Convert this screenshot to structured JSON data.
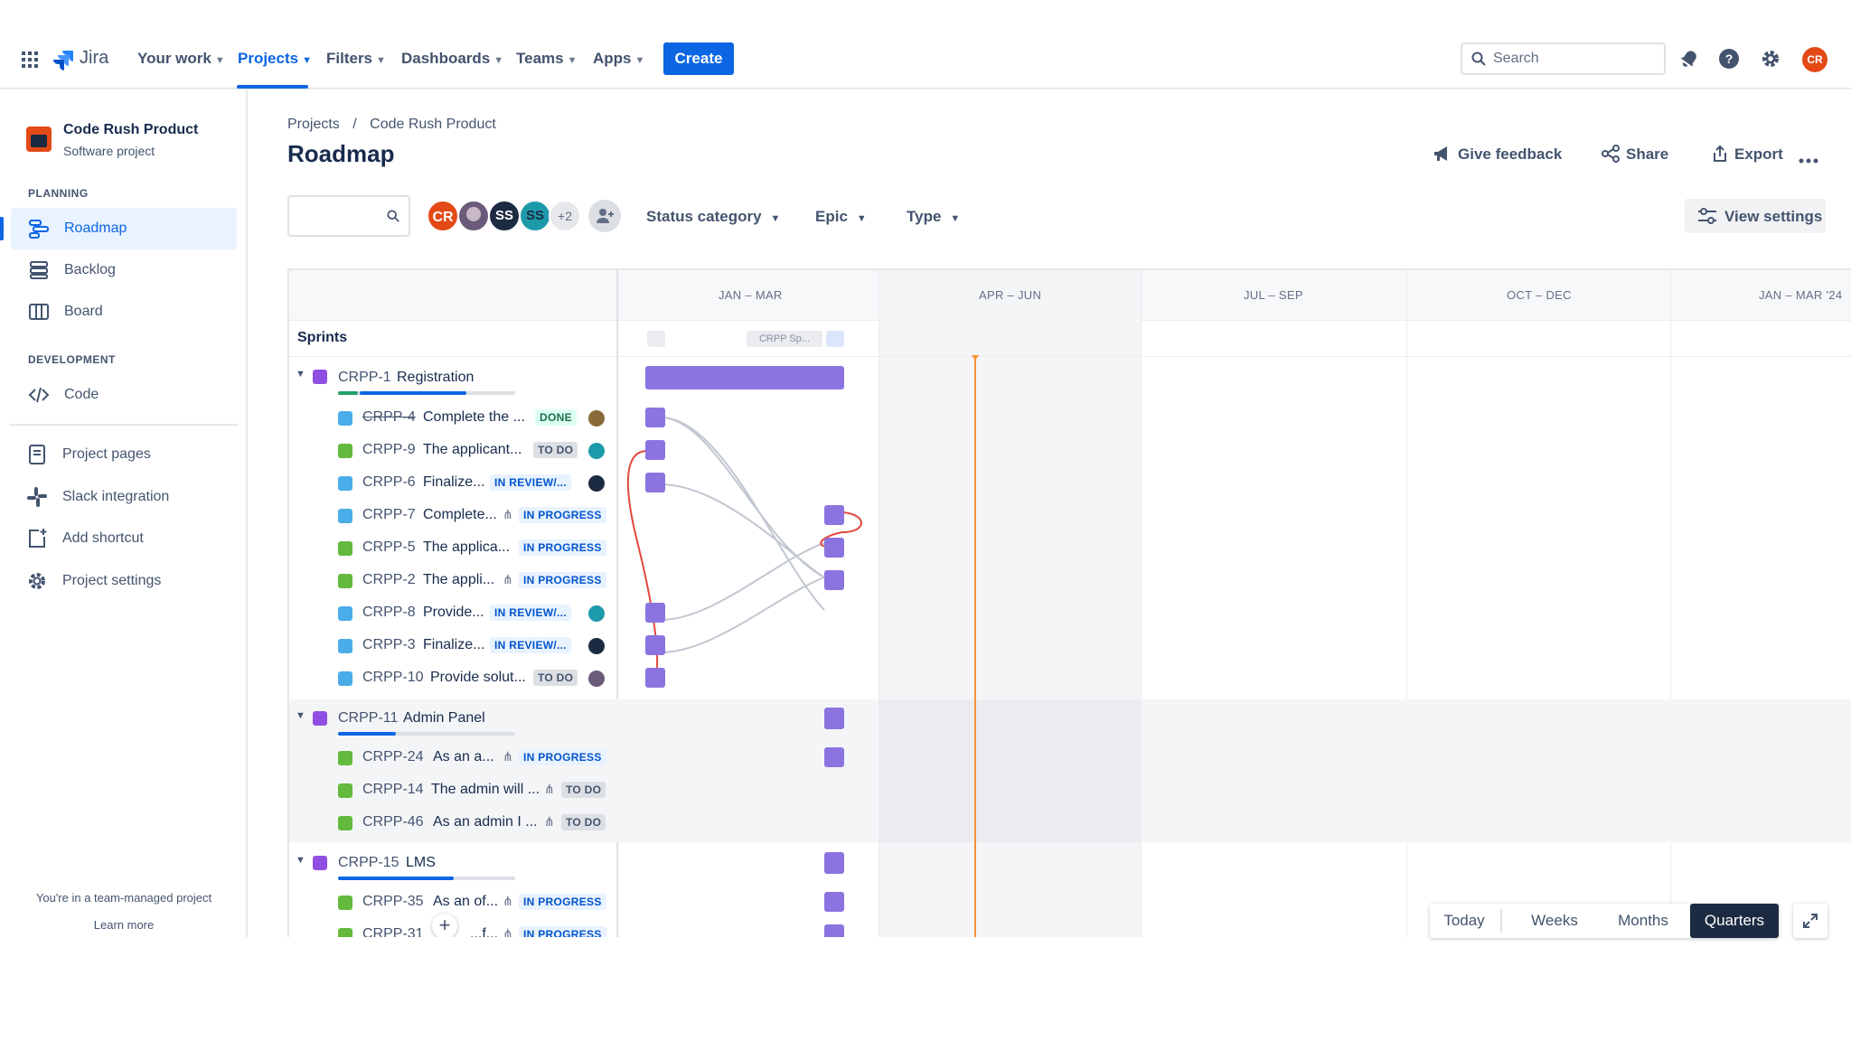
{
  "topnav": {
    "logo": "Jira",
    "items": [
      {
        "label": "Your work"
      },
      {
        "label": "Projects"
      },
      {
        "label": "Filters"
      },
      {
        "label": "Dashboards"
      },
      {
        "label": "Teams"
      },
      {
        "label": "Apps"
      }
    ],
    "active_item": "Projects",
    "create_label": "Create",
    "search_placeholder": "Search",
    "user_initials": "CR",
    "colors": {
      "accent": "#0c66e4",
      "user_avatar": "#e34a16"
    }
  },
  "sidebar": {
    "project_name": "Code Rush Product",
    "project_type": "Software project",
    "planning_header": "PLANNING",
    "planning_items": [
      {
        "label": "Roadmap",
        "icon": "roadmap-icon",
        "active": true
      },
      {
        "label": "Backlog",
        "icon": "backlog-icon"
      },
      {
        "label": "Board",
        "icon": "board-icon"
      }
    ],
    "development_header": "DEVELOPMENT",
    "development_items": [
      {
        "label": "Code",
        "icon": "code-icon"
      }
    ],
    "other_items": [
      {
        "label": "Project pages",
        "icon": "page-icon"
      },
      {
        "label": "Slack integration",
        "icon": "slack-icon"
      },
      {
        "label": "Add shortcut",
        "icon": "add-shortcut-icon"
      },
      {
        "label": "Project settings",
        "icon": "gear-icon"
      }
    ],
    "footer_text": "You're in a team-managed project",
    "footer_link": "Learn more"
  },
  "header": {
    "breadcrumb": [
      "Projects",
      "Code Rush Product"
    ],
    "breadcrumb_sep": "/",
    "title": "Roadmap",
    "actions": {
      "feedback": "Give feedback",
      "share": "Share",
      "export": "Export"
    }
  },
  "filters": {
    "avatars": [
      "CR",
      "",
      "SS",
      "SS"
    ],
    "more_count": "+2",
    "status_category": "Status category",
    "epic": "Epic",
    "type": "Type",
    "view_settings": "View settings"
  },
  "timeline": {
    "quarters": [
      "JAN – MAR",
      "APR – JUN",
      "JUL – SEP",
      "OCT – DEC",
      "JAN – MAR '24"
    ],
    "sprints_label": "Sprints",
    "sprint_chip": "CRPP Sp...",
    "rows": [
      {
        "kind": "epic",
        "key": "CRPP-1",
        "summary": "Registration",
        "progress_done": 0.12,
        "progress_inprog": 0.6
      },
      {
        "kind": "task",
        "key": "CRPP-4",
        "summary": "Complete the ...",
        "status": "DONE",
        "done": true
      },
      {
        "kind": "story",
        "key": "CRPP-9",
        "summary": "The applicant...",
        "status": "TO DO"
      },
      {
        "kind": "task",
        "key": "CRPP-6",
        "summary": "Finalize...",
        "status": "IN REVIEW/..."
      },
      {
        "kind": "task",
        "key": "CRPP-7",
        "summary": "Complete...",
        "status": "IN PROGRESS",
        "child_icon": true
      },
      {
        "kind": "story",
        "key": "CRPP-5",
        "summary": "The applica...",
        "status": "IN PROGRESS"
      },
      {
        "kind": "story",
        "key": "CRPP-2",
        "summary": "The appli...",
        "status": "IN PROGRESS",
        "child_icon": true
      },
      {
        "kind": "task",
        "key": "CRPP-8",
        "summary": "Provide...",
        "status": "IN REVIEW/..."
      },
      {
        "kind": "task",
        "key": "CRPP-3",
        "summary": "Finalize...",
        "status": "IN REVIEW/..."
      },
      {
        "kind": "task",
        "key": "CRPP-10",
        "summary": "Provide solut...",
        "status": "TO DO"
      },
      {
        "kind": "epic",
        "key": "CRPP-11",
        "summary": "Admin Panel",
        "progress_done": 0,
        "progress_inprog": 0.33
      },
      {
        "kind": "story",
        "key": "CRPP-24",
        "summary": "As an a...",
        "status": "IN PROGRESS",
        "child_icon": true
      },
      {
        "kind": "story",
        "key": "CRPP-14",
        "summary": "The admin will ...",
        "status": "TO DO",
        "child_icon": true
      },
      {
        "kind": "story",
        "key": "CRPP-46",
        "summary": "As an admin I ...",
        "status": "TO DO",
        "child_icon": true
      },
      {
        "kind": "epic",
        "key": "CRPP-15",
        "summary": "LMS",
        "progress_done": 0,
        "progress_inprog": 0.66
      },
      {
        "kind": "story",
        "key": "CRPP-35",
        "summary": "As an of...",
        "status": "IN PROGRESS",
        "child_icon": true
      },
      {
        "kind": "story",
        "key": "CRPP-31",
        "summary": "...f...",
        "status": "IN PROGRESS",
        "child_icon": true
      }
    ]
  },
  "zoom": {
    "today": "Today",
    "weeks": "Weeks",
    "months": "Months",
    "quarters": "Quarters",
    "active": "Quarters"
  }
}
